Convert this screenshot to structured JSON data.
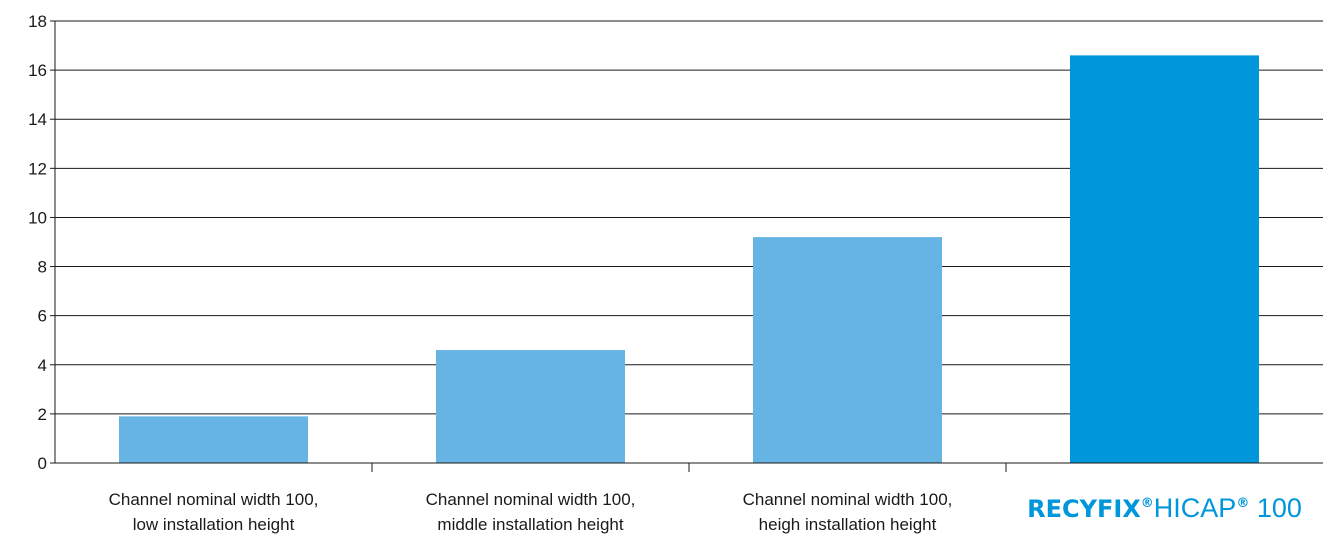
{
  "chart_data": {
    "type": "bar",
    "title": "",
    "xlabel": "",
    "ylabel": "",
    "ylim": [
      0,
      18
    ],
    "yticks": [
      0,
      2,
      4,
      6,
      8,
      10,
      12,
      14,
      16,
      18
    ],
    "grid": true,
    "categories": [
      {
        "lines": [
          "Channel nominal width 100,",
          "low installation height"
        ],
        "value": 1.9,
        "color": "#66b4e3"
      },
      {
        "lines": [
          "Channel nominal width 100,",
          "middle installation height"
        ],
        "value": 4.6,
        "color": "#66b4e3"
      },
      {
        "lines": [
          "Channel nominal width 100,",
          "heigh installation height"
        ],
        "value": 9.2,
        "color": "#66b4e3"
      },
      {
        "brand": {
          "bold": "RECYFIX",
          "sup1": "®",
          "reg": "HICAP",
          "sup2": "®",
          "model": "100"
        },
        "value": 16.6,
        "color": "#0096db"
      }
    ]
  }
}
